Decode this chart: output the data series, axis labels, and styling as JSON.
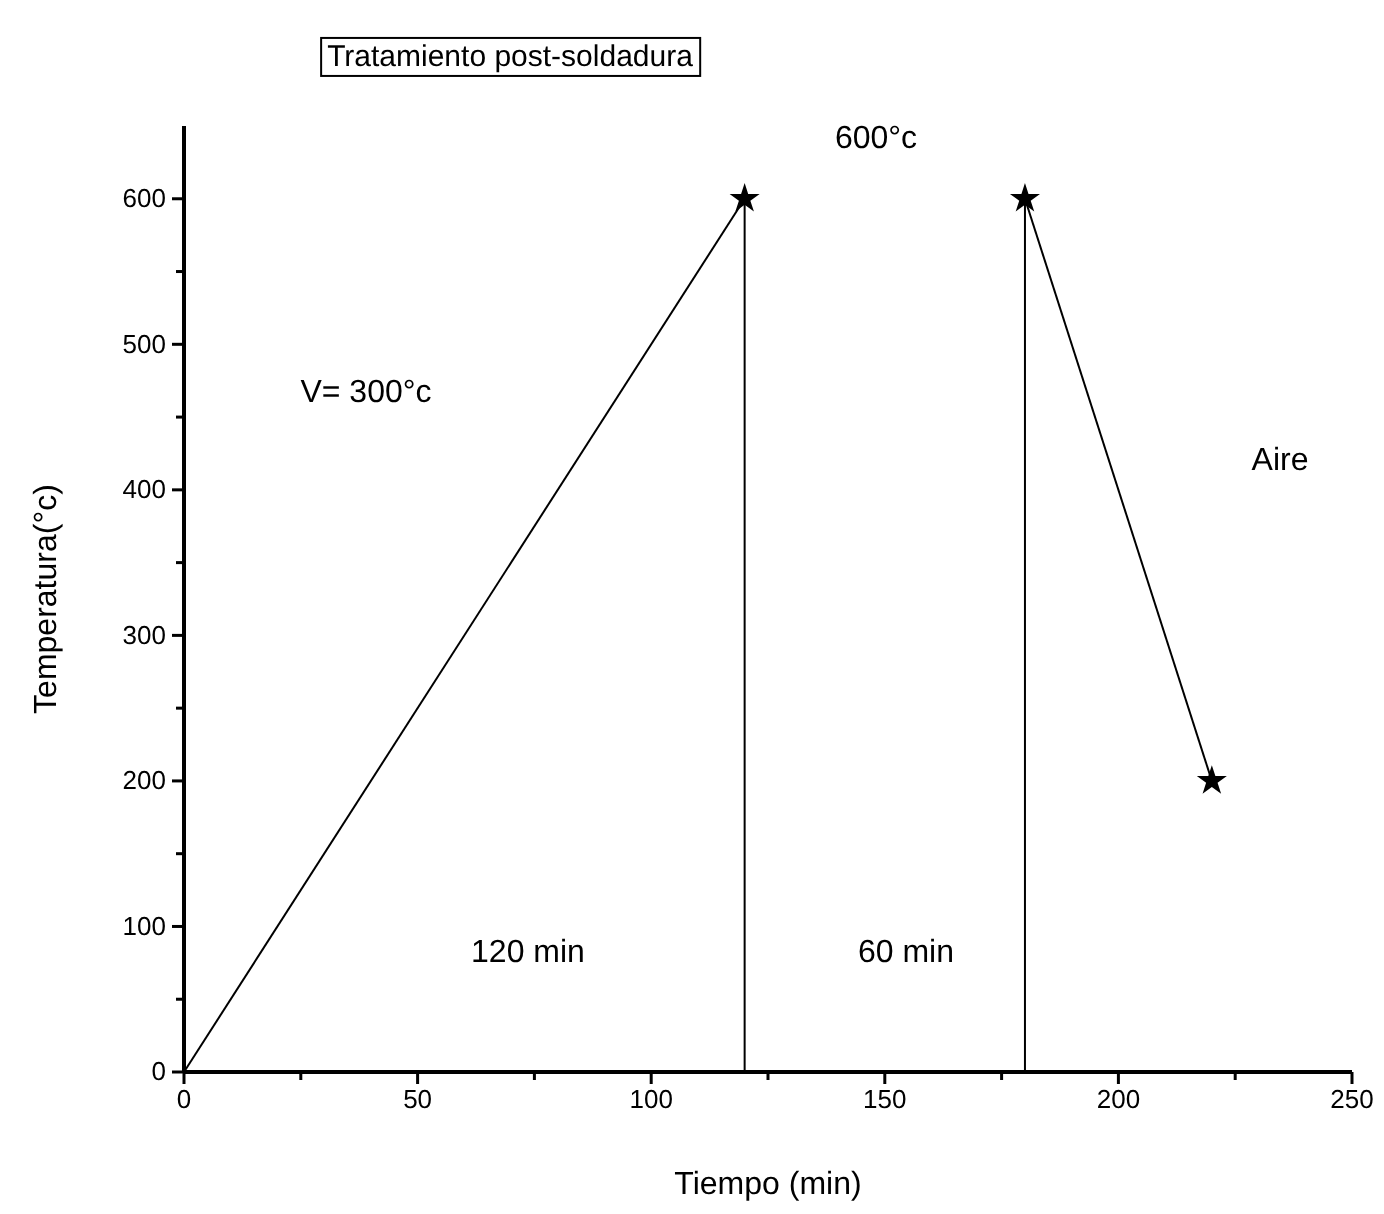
{
  "chart_data": {
    "type": "line",
    "title": "Tratamiento post-soldadura",
    "xlabel": "Tiempo (min)",
    "ylabel": "Temperatura(°c)",
    "xlim": [
      0,
      250
    ],
    "ylim": [
      0,
      650
    ],
    "xticks": [
      0,
      {
        "value": 25,
        "label": null
      },
      50,
      {
        "value": 75,
        "label": null
      },
      100,
      {
        "value": 125,
        "label": null
      },
      150,
      {
        "value": 175,
        "label": null
      },
      200,
      {
        "value": 225,
        "label": null
      },
      250
    ],
    "yticks": [
      0,
      {
        "value": 50,
        "label": null
      },
      100,
      {
        "value": 150,
        "label": null
      },
      200,
      {
        "value": 250,
        "label": null
      },
      300,
      {
        "value": 350,
        "label": null
      },
      400,
      {
        "value": 450,
        "label": null
      },
      500,
      {
        "value": 550,
        "label": null
      },
      600
    ],
    "line_style": "solid",
    "series": [
      {
        "color": "#000000",
        "x": [
          0,
          120
        ],
        "values": [
          0,
          600
        ],
        "marker": "none"
      },
      {
        "color": "#000000",
        "x": [
          120,
          120
        ],
        "values": [
          0,
          600
        ],
        "marker": "none"
      },
      {
        "color": "#000000",
        "x": [
          180,
          180
        ],
        "values": [
          0,
          600
        ],
        "marker": "none"
      },
      {
        "color": "#000000",
        "x": [
          180,
          220
        ],
        "values": [
          600,
          200
        ],
        "marker": "none"
      },
      {
        "type": "scatter",
        "color": "#000000",
        "x": [
          120,
          180,
          220
        ],
        "values": [
          600,
          600,
          200
        ],
        "marker": "star"
      }
    ],
    "annotations": [
      "V= 300°c",
      "600°c",
      "120 min",
      "60 min",
      "Aire"
    ]
  }
}
